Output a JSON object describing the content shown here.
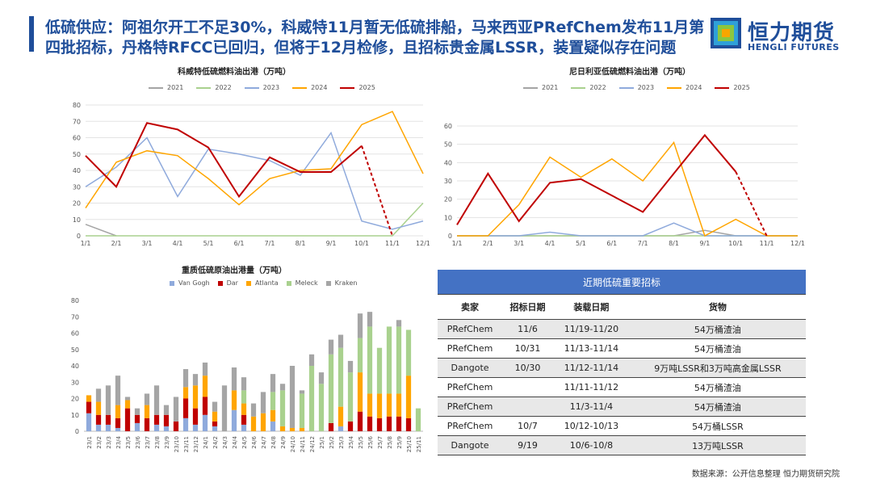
{
  "header": {
    "title": "低硫供应：阿祖尔开工不足30%，科威特11月暂无低硫排船，马来西亚PRefChem发布11月第四批招标，丹格特RFCC已回归，但将于12月检修，且招标贵金属LSSR，装置疑似存在问题"
  },
  "logo": {
    "cn": "恒力期货",
    "en": "HENGLI FUTURES"
  },
  "colors": {
    "2021": "#a5a5a5",
    "2022": "#a9d18e",
    "2023": "#8faadc",
    "2024": "#ffa500",
    "2025": "#c00000",
    "van_gogh": "#8faadc",
    "dar": "#c00000",
    "atlanta": "#ffa500",
    "meleck": "#a9d18e",
    "kraken": "#a5a5a5",
    "table_header": "#4472c4"
  },
  "chart_data": [
    {
      "type": "line",
      "title": "科威特低硫燃料油出港（万吨）",
      "categories": [
        "1/1",
        "2/1",
        "3/1",
        "4/1",
        "5/1",
        "6/1",
        "7/1",
        "8/1",
        "9/1",
        "10/1",
        "11/1",
        "12/1"
      ],
      "ylim": [
        0,
        80
      ],
      "yticks": [
        0,
        10,
        20,
        30,
        40,
        50,
        60,
        70,
        80
      ],
      "series": [
        {
          "name": "2021",
          "values": [
            7,
            0,
            null,
            null,
            null,
            null,
            null,
            null,
            null,
            null,
            null,
            null
          ]
        },
        {
          "name": "2022",
          "values": [
            0,
            0,
            0,
            0,
            0,
            0,
            0,
            0,
            0,
            0,
            0,
            20
          ]
        },
        {
          "name": "2023",
          "values": [
            30,
            42,
            60,
            24,
            53,
            50,
            46,
            37,
            63,
            9,
            4,
            9
          ]
        },
        {
          "name": "2024",
          "values": [
            17,
            45,
            52,
            49,
            35,
            19,
            35,
            40,
            41,
            68,
            76,
            38
          ]
        },
        {
          "name": "2025",
          "values": [
            49,
            30,
            69,
            65,
            54,
            24,
            48,
            39,
            39,
            55,
            0,
            null
          ],
          "dashed_from": 9
        }
      ]
    },
    {
      "type": "line",
      "title": "尼日利亚低硫燃料油出港（万吨）",
      "categories": [
        "1/1",
        "2/1",
        "3/1",
        "4/1",
        "5/1",
        "6/1",
        "7/1",
        "8/1",
        "9/1",
        "10/1",
        "11/1",
        "12/1"
      ],
      "ylim": [
        0,
        60
      ],
      "yticks": [
        0,
        10,
        20,
        30,
        40,
        50,
        60
      ],
      "series": [
        {
          "name": "2021",
          "values": [
            0,
            0,
            0,
            0,
            0,
            0,
            0,
            0,
            3,
            0,
            0,
            0
          ]
        },
        {
          "name": "2022",
          "values": [
            0,
            0,
            0,
            0,
            0,
            0,
            0,
            0,
            0,
            0,
            0,
            0
          ]
        },
        {
          "name": "2023",
          "values": [
            0,
            0,
            0,
            2,
            0,
            0,
            0,
            7,
            0,
            0,
            0,
            0
          ]
        },
        {
          "name": "2024",
          "values": [
            0,
            0,
            17,
            43,
            32,
            42,
            30,
            51,
            0,
            9,
            0,
            0
          ]
        },
        {
          "name": "2025",
          "values": [
            6,
            34,
            8,
            29,
            31,
            22,
            13,
            34,
            55,
            35,
            0,
            null
          ],
          "dashed_from": 9
        }
      ]
    },
    {
      "type": "bar",
      "stacked": true,
      "title": "重质低硫原油出港量（万吨）",
      "categories": [
        "23/1",
        "23/2",
        "23/3",
        "23/4",
        "23/5",
        "23/6",
        "23/7",
        "23/8",
        "23/9",
        "23/10",
        "23/11",
        "23/12",
        "24/1",
        "24/2",
        "24/3",
        "24/4",
        "24/5",
        "24/6",
        "24/7",
        "24/8",
        "24/9",
        "24/10",
        "24/11",
        "24/12",
        "25/1",
        "25/2",
        "25/3",
        "25/4",
        "25/5",
        "25/6",
        "25/7",
        "25/8",
        "25/9",
        "25/10",
        "25/11"
      ],
      "ylim": [
        0,
        80
      ],
      "yticks": [
        0,
        10,
        20,
        30,
        40,
        50,
        60,
        70,
        80
      ],
      "series": [
        {
          "name": "Van Gogh",
          "key": "van_gogh",
          "values": [
            11,
            4,
            4,
            2,
            0,
            5,
            0,
            4,
            3,
            0,
            8,
            4,
            10,
            3,
            0,
            13,
            4,
            0,
            0,
            6,
            0,
            0,
            0,
            0,
            0,
            0,
            3,
            0,
            0,
            0,
            0,
            0,
            0,
            0,
            0
          ]
        },
        {
          "name": "Dar",
          "key": "dar",
          "values": [
            7,
            6,
            6,
            6,
            14,
            5,
            8,
            6,
            7,
            6,
            12,
            10,
            11,
            3,
            0,
            0,
            6,
            0,
            0,
            0,
            0,
            0,
            0,
            0,
            0,
            5,
            0,
            6,
            12,
            9,
            8,
            9,
            9,
            8,
            0
          ]
        },
        {
          "name": "Atlanta",
          "key": "atlanta",
          "values": [
            4,
            8,
            0,
            8,
            5,
            0,
            8,
            0,
            0,
            0,
            7,
            14,
            13,
            6,
            0,
            12,
            7,
            9,
            11,
            7,
            3,
            2,
            2,
            0,
            0,
            0,
            12,
            0,
            24,
            14,
            15,
            14,
            14,
            26,
            0
          ]
        },
        {
          "name": "Meleck",
          "key": "meleck",
          "values": [
            0,
            0,
            0,
            0,
            0,
            0,
            0,
            0,
            0,
            0,
            0,
            0,
            0,
            0,
            0,
            0,
            8,
            0,
            0,
            11,
            22,
            0,
            21,
            40,
            29,
            42,
            36,
            30,
            21,
            41,
            28,
            41,
            41,
            28,
            14
          ]
        },
        {
          "name": "Kraken",
          "key": "kraken",
          "values": [
            0,
            8,
            18,
            18,
            2,
            4,
            7,
            18,
            6,
            15,
            11,
            7,
            8,
            6,
            28,
            14,
            8,
            8,
            13,
            11,
            4,
            38,
            2,
            7,
            7,
            9,
            8,
            7,
            15,
            9,
            0,
            0,
            4,
            0,
            0
          ]
        }
      ]
    }
  ],
  "table": {
    "caption": "近期低硫重要招标",
    "headers": [
      "卖家",
      "招标日期",
      "装载日期",
      "货物"
    ],
    "rows": [
      [
        "PRefChem",
        "11/6",
        "11/19-11/20",
        "54万桶渣油"
      ],
      [
        "PRefChem",
        "10/31",
        "11/13-11/14",
        "54万桶渣油"
      ],
      [
        "Dangote",
        "10/30",
        "11/12-11/14",
        "9万吨LSSR和3万吨高金属LSSR"
      ],
      [
        "PRefChem",
        "",
        "11/11-11/12",
        "54万桶渣油"
      ],
      [
        "PRefChem",
        "",
        "11/3-11/4",
        "54万桶渣油"
      ],
      [
        "PRefChem",
        "10/7",
        "10/12-10/13",
        "54万桶LSSR"
      ],
      [
        "Dangote",
        "9/19",
        "10/6-10/8",
        "13万吨LSSR"
      ]
    ]
  },
  "source": "数据来源：公开信息整理  恒力期货研究院"
}
